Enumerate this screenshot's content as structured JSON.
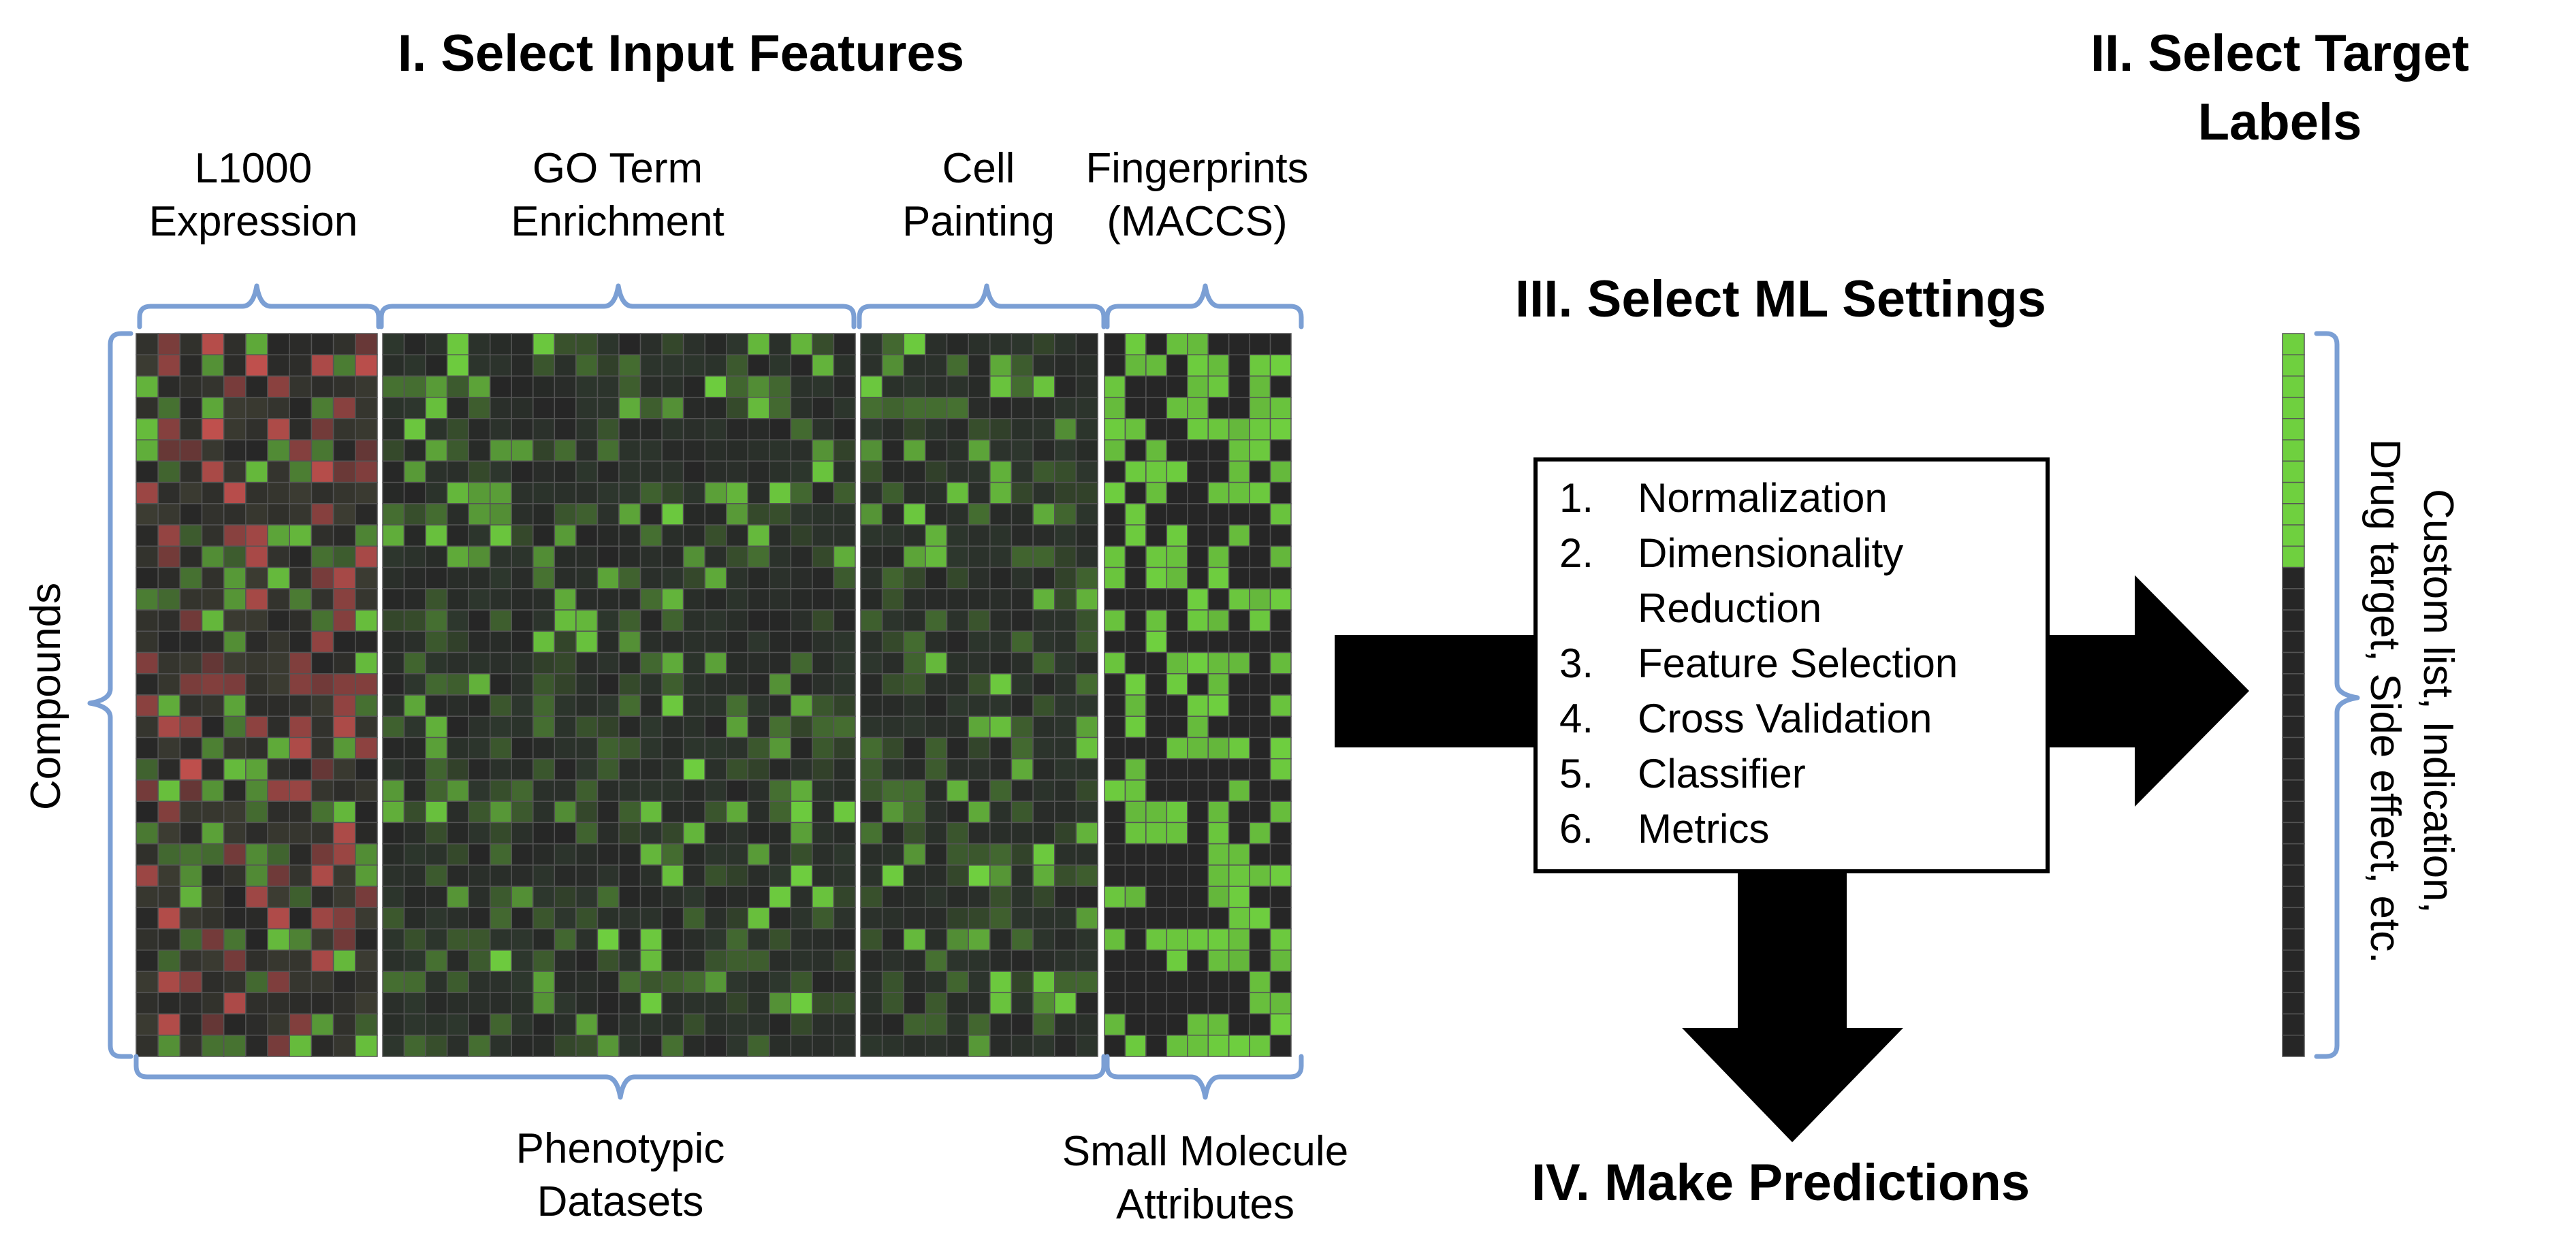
{
  "headings": {
    "select_input": "I. Select Input Features",
    "select_target_line1": "II. Select Target",
    "select_target_line2": "Labels",
    "ml_settings": "III. Select ML Settings",
    "predictions": "IV. Make Predictions"
  },
  "feature_groups": [
    {
      "line1": "L1000",
      "line2": "Expression",
      "palette": "red-green"
    },
    {
      "line1": "GO Term",
      "line2": "Enrichment",
      "palette": "green"
    },
    {
      "line1": "Cell",
      "line2": "Painting",
      "palette": "green"
    },
    {
      "line1": "Fingerprints",
      "line2": "(MACCS)",
      "palette": "binary-green"
    }
  ],
  "row_axis_label": "Compounds",
  "bottom_groups": [
    {
      "line1": "Phenotypic",
      "line2": "Datasets"
    },
    {
      "line1": "Small Molecule",
      "line2": "Attributes"
    }
  ],
  "ml_steps": [
    {
      "num": "1.",
      "line1": "Normalization",
      "line2": ""
    },
    {
      "num": "2.",
      "line1": "Dimensionality",
      "line2": "Reduction"
    },
    {
      "num": "3.",
      "line1": "Feature Selection",
      "line2": ""
    },
    {
      "num": "4.",
      "line1": "Cross Validation",
      "line2": ""
    },
    {
      "num": "5.",
      "line1": "Classifier",
      "line2": ""
    },
    {
      "num": "6.",
      "line1": "Metrics",
      "line2": ""
    }
  ],
  "target_label": {
    "line1": "Custom list, Indication,",
    "line2": "Drug target, Side effect, etc."
  },
  "colors": {
    "bracket": "#7b9fd4",
    "cell_dark": "#262626",
    "green_bright": "#6fd03f",
    "red": "#c0504d",
    "grid_line": "#555555",
    "arrow": "#000000"
  }
}
